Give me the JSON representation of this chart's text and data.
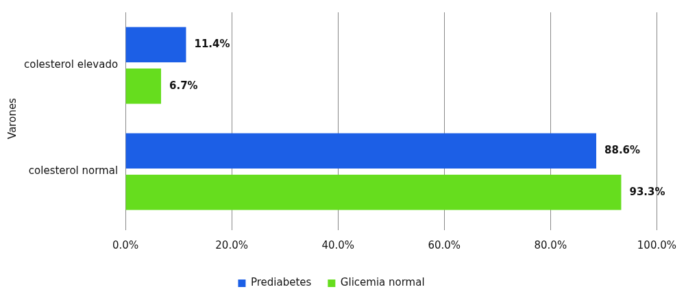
{
  "chart_data": {
    "type": "bar",
    "orientation": "horizontal",
    "ylabel": "Varones",
    "categories": [
      "colesterol elevado",
      "colesterol normal"
    ],
    "series": [
      {
        "name": "Prediabetes",
        "color": "#1c5fe6",
        "values": [
          11.4,
          88.6
        ],
        "value_labels": [
          "11.4%",
          "88.6%"
        ]
      },
      {
        "name": "Glicemia normal",
        "color": "#66dd1e",
        "values": [
          6.7,
          93.3
        ],
        "value_labels": [
          "6.7%",
          "93.3%"
        ]
      }
    ],
    "xlim": [
      0,
      100
    ],
    "xticks": [
      {
        "value": 0,
        "label": "0.0%"
      },
      {
        "value": 20,
        "label": "20.0%"
      },
      {
        "value": 40,
        "label": "40.0%"
      },
      {
        "value": 60,
        "label": "60.0%"
      },
      {
        "value": 80,
        "label": "80.0%"
      },
      {
        "value": 100,
        "label": "100.0%"
      }
    ],
    "grid": "x",
    "legend": "bottom"
  }
}
